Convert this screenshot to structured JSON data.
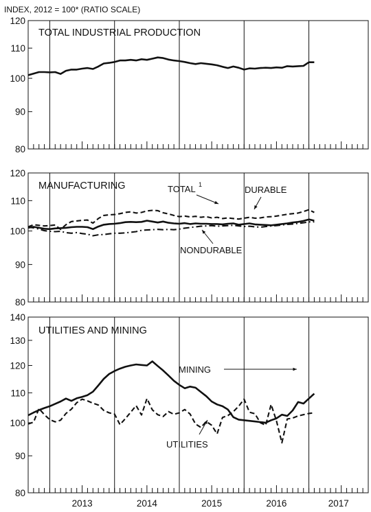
{
  "header_text": "INDEX, 2012 = 100* (RATIO SCALE)",
  "x_tick_labels": [
    "2013",
    "2014",
    "2015",
    "2016",
    "2017"
  ],
  "chart_data": [
    {
      "type": "line",
      "title": "TOTAL INDUSTRIAL PRODUCTION",
      "scale": "log",
      "ylim": [
        80,
        120
      ],
      "yticks": [
        80,
        90,
        100,
        110,
        120
      ],
      "x_start": "2012-09",
      "x_axis_range": [
        "2012-09",
        "2017-12"
      ],
      "series": [
        {
          "style": "solid",
          "values": [
            101.0,
            101.5,
            102.0,
            102.0,
            101.9,
            102.0,
            101.4,
            102.4,
            102.8,
            102.8,
            103.1,
            103.3,
            103.0,
            103.8,
            104.8,
            105.0,
            105.3,
            105.8,
            105.8,
            106.0,
            105.8,
            106.2,
            106.0,
            106.4,
            106.8,
            106.6,
            106.1,
            105.8,
            105.6,
            105.3,
            104.9,
            104.6,
            104.9,
            104.7,
            104.5,
            104.2,
            103.7,
            103.3,
            103.8,
            103.4,
            102.8,
            103.2,
            103.1,
            103.3,
            103.4,
            103.3,
            103.5,
            103.4,
            103.9,
            103.8,
            103.9,
            104.0,
            105.2,
            105.2
          ]
        }
      ]
    },
    {
      "type": "line",
      "title": "MANUFACTURING",
      "scale": "log",
      "ylim": [
        80,
        120
      ],
      "yticks": [
        80,
        90,
        100,
        110,
        120
      ],
      "x_start": "2012-09",
      "annotations": [
        "TOTAL",
        "1",
        "DURABLE",
        "NONDURABLE"
      ],
      "series": [
        {
          "name": "TOTAL",
          "style": "solid",
          "values": [
            101.0,
            101.3,
            101.0,
            100.7,
            100.6,
            100.8,
            100.9,
            101.0,
            101.2,
            101.3,
            101.3,
            101.2,
            100.6,
            101.4,
            102.0,
            102.2,
            102.3,
            102.5,
            102.8,
            102.9,
            102.8,
            102.9,
            103.3,
            103.0,
            102.7,
            103.0,
            102.6,
            102.4,
            102.3,
            102.5,
            102.2,
            102.4,
            102.3,
            102.3,
            102.2,
            102.2,
            102.1,
            102.3,
            102.4,
            102.0,
            102.2,
            102.4,
            102.1,
            102.0,
            101.9,
            101.8,
            102.0,
            102.2,
            102.4,
            102.7,
            102.9,
            103.2,
            103.7,
            103.3
          ]
        },
        {
          "name": "DURABLE",
          "style": "dashed",
          "values": [
            101.3,
            102.0,
            101.8,
            101.6,
            101.7,
            101.9,
            100.5,
            102.0,
            103.0,
            103.2,
            103.4,
            103.5,
            102.5,
            104.0,
            105.0,
            105.2,
            105.3,
            105.6,
            106.0,
            106.2,
            105.8,
            106.0,
            106.5,
            106.7,
            106.6,
            105.9,
            105.5,
            105.0,
            104.6,
            104.8,
            104.5,
            104.7,
            104.4,
            104.6,
            104.2,
            104.4,
            104.0,
            104.2,
            104.0,
            103.8,
            104.1,
            104.4,
            104.1,
            104.2,
            104.5,
            104.6,
            104.8,
            105.1,
            105.4,
            105.6,
            105.8,
            106.3,
            106.9,
            106.0
          ]
        },
        {
          "name": "NONDURABLE",
          "style": "dashdot",
          "values": [
            101.2,
            101.0,
            100.6,
            100.1,
            99.9,
            99.8,
            99.9,
            99.5,
            99.3,
            99.5,
            99.2,
            99.0,
            98.5,
            98.8,
            98.9,
            99.1,
            99.3,
            99.3,
            99.4,
            99.6,
            99.8,
            100.2,
            100.3,
            100.4,
            100.5,
            100.4,
            100.5,
            100.4,
            100.6,
            100.9,
            101.1,
            101.3,
            101.5,
            101.6,
            101.7,
            101.5,
            101.6,
            101.7,
            101.8,
            101.6,
            101.4,
            101.5,
            101.3,
            101.2,
            101.4,
            101.6,
            101.7,
            101.9,
            102.1,
            102.2,
            102.4,
            102.6,
            102.9,
            102.9
          ]
        }
      ]
    },
    {
      "type": "line",
      "title": "UTILITIES AND MINING",
      "scale": "log",
      "ylim": [
        80,
        140
      ],
      "yticks": [
        80,
        90,
        100,
        110,
        120,
        130,
        140
      ],
      "x_start": "2012-09",
      "annotations": [
        "MINING",
        "UTILITIES"
      ],
      "series": [
        {
          "name": "MINING",
          "style": "solid",
          "values": [
            102.4,
            103.3,
            104.1,
            104.8,
            105.4,
            106.2,
            107.0,
            108.0,
            107.2,
            108.1,
            108.6,
            109.2,
            110.4,
            112.6,
            115.0,
            116.8,
            117.9,
            118.8,
            119.5,
            120.0,
            120.4,
            120.2,
            120.0,
            121.6,
            119.8,
            118.1,
            116.2,
            114.3,
            112.8,
            111.6,
            112.2,
            111.8,
            110.3,
            108.8,
            107.0,
            106.0,
            105.4,
            104.3,
            101.8,
            101.0,
            100.8,
            100.6,
            100.4,
            100.2,
            100.0,
            100.8,
            101.4,
            102.6,
            102.2,
            104.0,
            106.8,
            106.3,
            108.0,
            109.7
          ]
        },
        {
          "name": "UTILITIES",
          "style": "dashed",
          "values": [
            99.6,
            100.2,
            104.6,
            102.6,
            101.0,
            100.3,
            100.8,
            103.0,
            104.4,
            106.6,
            107.8,
            107.2,
            106.4,
            105.8,
            104.0,
            103.2,
            102.8,
            99.4,
            101.3,
            103.4,
            105.6,
            102.5,
            108.0,
            104.2,
            102.6,
            102.0,
            103.6,
            102.7,
            103.2,
            104.3,
            102.8,
            99.6,
            98.5,
            100.4,
            99.2,
            96.5,
            101.7,
            102.3,
            103.6,
            105.4,
            107.8,
            103.4,
            102.9,
            100.0,
            99.2,
            106.0,
            100.6,
            93.8,
            101.2,
            101.5,
            102.2,
            102.6,
            103.0,
            103.2
          ]
        }
      ]
    }
  ]
}
